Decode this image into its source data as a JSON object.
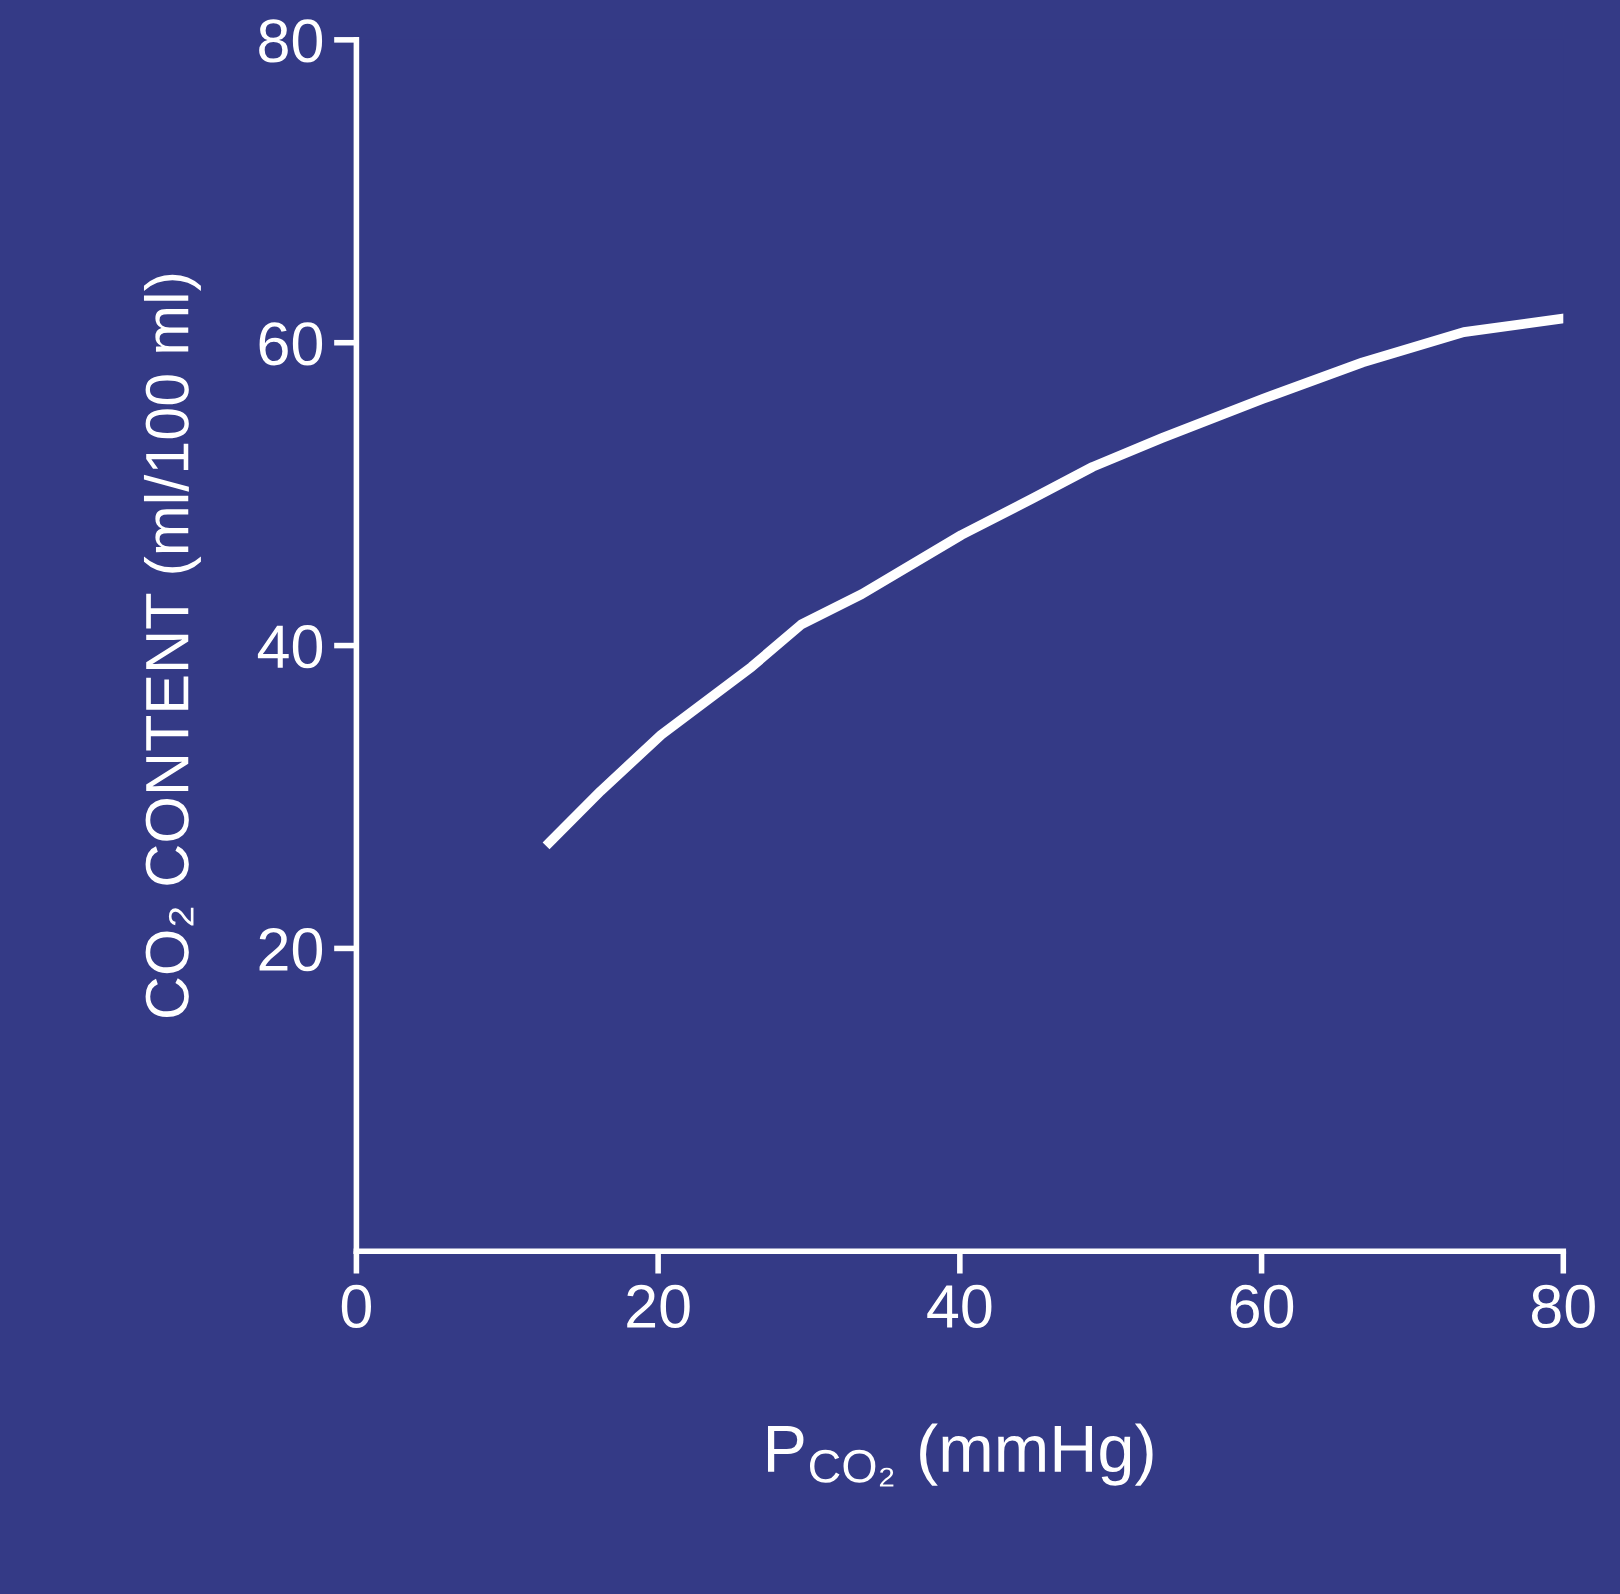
{
  "chart_data": {
    "type": "line",
    "xlabel": "P$_{CO₂}$ (mmHg)",
    "ylabel": "CO₂ CONTENT (ml/100 ml)",
    "x": [
      12.8,
      16.2,
      20.2,
      26.2,
      29.5,
      33.5,
      40.1,
      44.8,
      48.8,
      53.4,
      60.1,
      66.7,
      73.4,
      80
    ],
    "series": [
      {
        "color": "#ffffff",
        "values": [
          27,
          30.4,
          34.1,
          38.6,
          41.4,
          43.4,
          47.3,
          49.7,
          51.8,
          53.7,
          56.3,
          58.7,
          60.7,
          61.6
        ]
      }
    ],
    "xlim": [
      0,
      80
    ],
    "ylim": [
      0,
      80
    ],
    "xticks": [
      0,
      20,
      40,
      60,
      80
    ],
    "yticks": [
      20,
      40,
      60,
      80
    ],
    "grid": false,
    "legend": false,
    "marker": "none",
    "line_style": "solid"
  }
}
